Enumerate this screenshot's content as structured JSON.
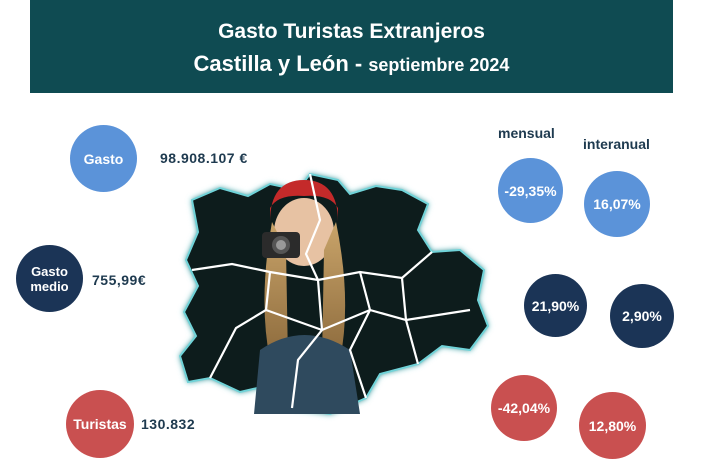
{
  "header": {
    "title": "Gasto Turistas Extranjeros",
    "region": "Castilla y León - ",
    "period": "septiembre 2024"
  },
  "columns": {
    "monthly": "mensual",
    "yearly": "interanual"
  },
  "metrics": [
    {
      "label": "Gasto",
      "value": "98.908.107 €",
      "monthly": "-29,35%",
      "yearly": "16,07%",
      "color": "#5b93d9"
    },
    {
      "label": "Gasto medio",
      "label_l1": "Gasto",
      "label_l2": "medio",
      "value": "755,99€",
      "monthly": "21,90%",
      "yearly": "2,90%",
      "color": "#1b3456"
    },
    {
      "label": "Turistas",
      "value": "130.832",
      "monthly": "-42,04%",
      "yearly": "12,80%",
      "color": "#c95050"
    }
  ],
  "colors": {
    "banner": "#0f4b52",
    "text": "#1e3a4f"
  }
}
